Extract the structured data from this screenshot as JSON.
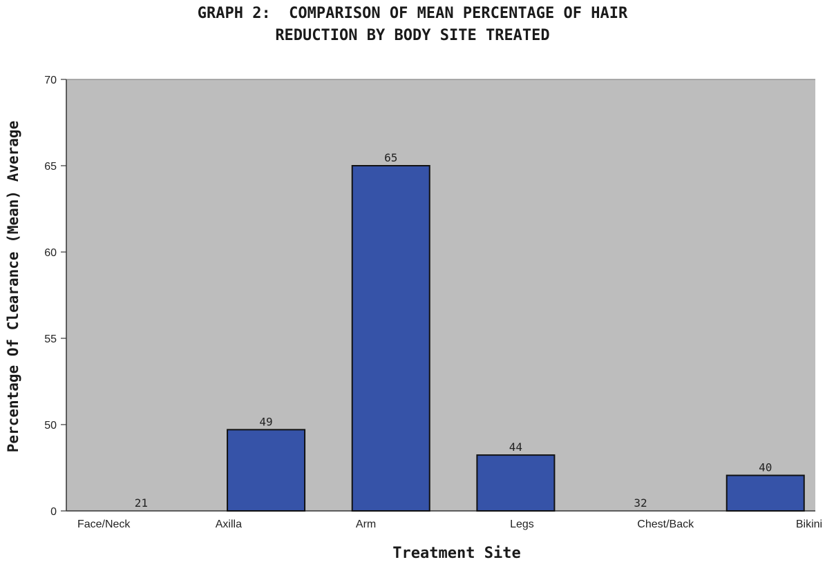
{
  "chart_data": {
    "type": "bar",
    "title_line1": "GRAPH 2:  COMPARISON OF MEAN PERCENTAGE OF HAIR",
    "title_line2": "REDUCTION BY BODY SITE TREATED",
    "xlabel": "Treatment Site",
    "ylabel": "Percentage Of Clearance (Mean) Average",
    "categories": [
      "Face/Neck",
      "Axilla",
      "Arm",
      "Legs",
      "Chest/Back",
      "Bikini"
    ],
    "values": [
      21,
      49,
      65,
      44,
      32,
      40
    ],
    "y_ticks": [
      "0",
      "50",
      "55",
      "60",
      "65",
      "70"
    ],
    "y_axis_break": "0 then 50 to 70",
    "grid": false,
    "legend": "none",
    "colors": {
      "bar_fill": "#3653a8",
      "bar_stroke": "#111111",
      "plot_background": "#bdbdbd"
    }
  }
}
